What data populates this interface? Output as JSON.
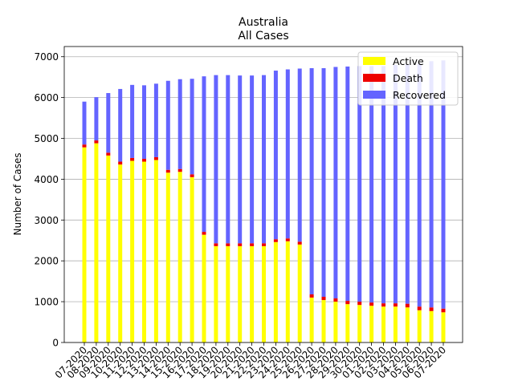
{
  "chart_data": {
    "type": "bar",
    "stacked": true,
    "title": "Australia",
    "subtitle": "All Cases",
    "xlabel": "",
    "ylabel": "Number of Cases",
    "ylim": [
      0,
      7250
    ],
    "yticks": [
      0,
      1000,
      2000,
      3000,
      4000,
      5000,
      6000,
      7000
    ],
    "grid": "horizontal",
    "legend_position": "top-right",
    "categories": [
      "07-2020",
      "08-2020",
      "09-2020",
      "10-2020",
      "11-2020",
      "12-2020",
      "13-2020",
      "14-2020",
      "15-2020",
      "16-2020",
      "17-2020",
      "18-2020",
      "19-2020",
      "20-2020",
      "21-2020",
      "22-2020",
      "23-2020",
      "24-2020",
      "25-2020",
      "26-2020",
      "27-2020",
      "28-2020",
      "29-2020",
      "30-2020",
      "01-2020",
      "02-2020",
      "03-2020",
      "04-2020",
      "05-2020",
      "06-2020",
      "07-2020"
    ],
    "series": [
      {
        "name": "Active",
        "color": "#ffff00",
        "values": [
          4780,
          4880,
          4580,
          4360,
          4450,
          4430,
          4470,
          4160,
          4180,
          4050,
          2640,
          2360,
          2360,
          2360,
          2360,
          2360,
          2460,
          2480,
          2400,
          1100,
          1040,
          1000,
          940,
          920,
          900,
          880,
          880,
          860,
          790,
          770,
          740
        ]
      },
      {
        "name": "Death",
        "color": "#ee0000",
        "values": [
          70,
          70,
          70,
          70,
          70,
          70,
          70,
          70,
          70,
          70,
          70,
          70,
          70,
          70,
          70,
          70,
          70,
          70,
          70,
          80,
          80,
          80,
          80,
          80,
          80,
          80,
          80,
          90,
          90,
          90,
          90
        ]
      },
      {
        "name": "Recovered",
        "color": "#6464ff",
        "values": [
          1050,
          1060,
          1460,
          1780,
          1790,
          1800,
          1800,
          2180,
          2200,
          2340,
          3810,
          4120,
          4120,
          4110,
          4110,
          4120,
          4130,
          4140,
          4240,
          5540,
          5600,
          5670,
          5740,
          5770,
          5790,
          5810,
          5840,
          5870,
          5950,
          6030,
          6080
        ]
      }
    ]
  }
}
